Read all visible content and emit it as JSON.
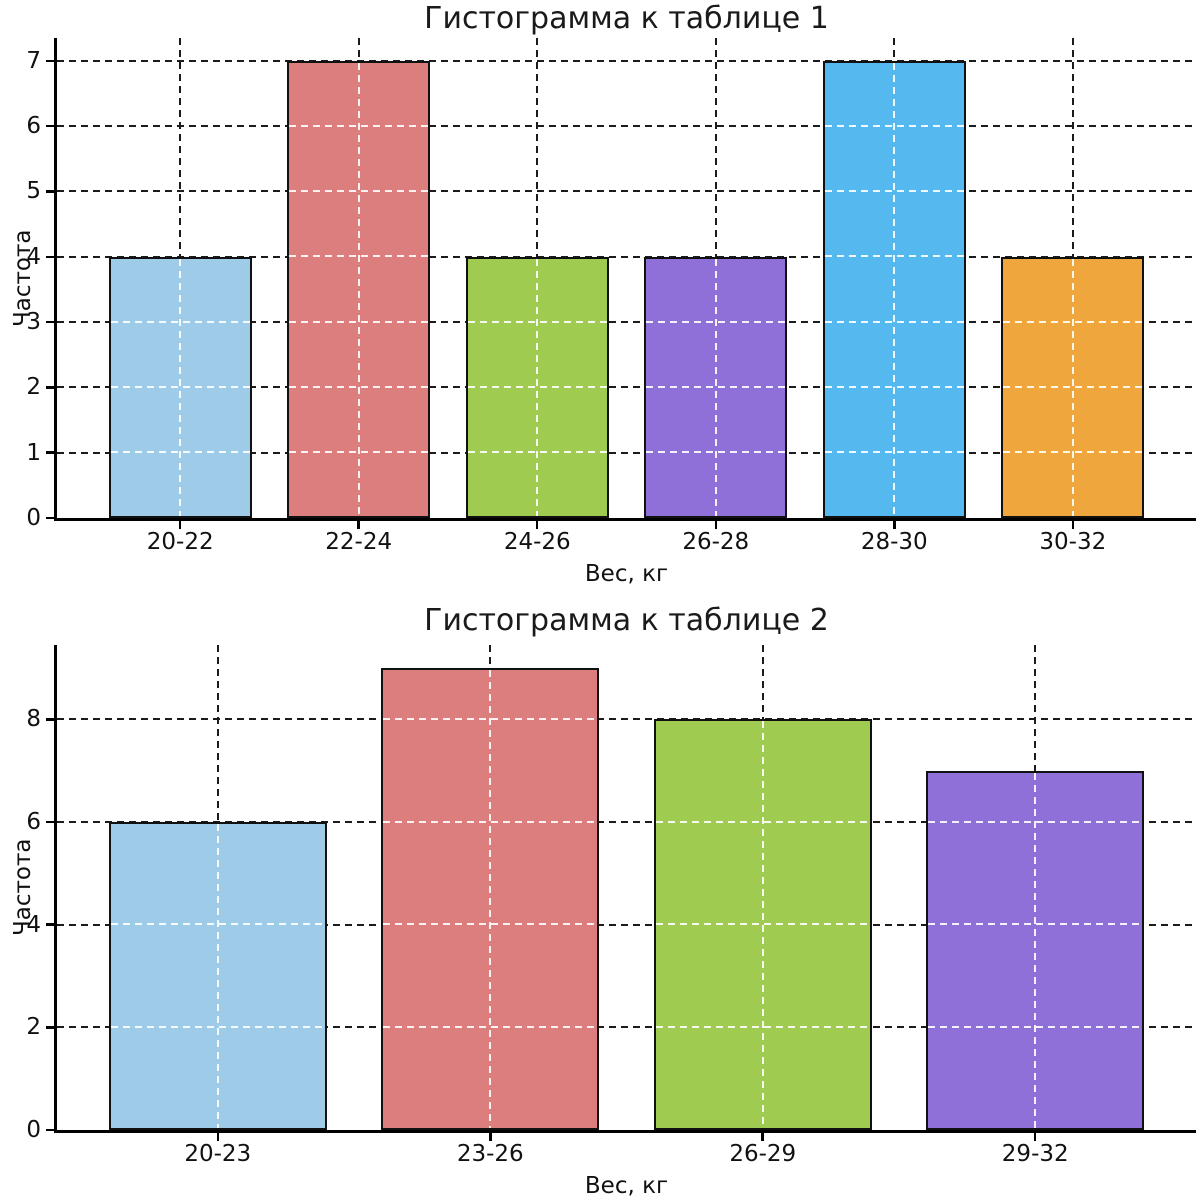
{
  "chart_data": [
    {
      "type": "bar",
      "title": "Гистограмма к таблице 1",
      "xlabel": "Вес, кг",
      "ylabel": "Частота",
      "categories": [
        "20-22",
        "22-24",
        "24-26",
        "26-28",
        "28-30",
        "30-32"
      ],
      "values": [
        4,
        7,
        4,
        4,
        7,
        4
      ],
      "bar_colors": [
        "#9DCBE8",
        "#DD7E7E",
        "#9FCB50",
        "#8F6FD8",
        "#55B9F0",
        "#EFA63C"
      ],
      "edge_color": "#111111",
      "yticks": [
        0,
        1,
        2,
        3,
        4,
        5,
        6,
        7
      ],
      "ylim": [
        0,
        7.35
      ],
      "grid": "dashed both, black below bars, white over bars",
      "legend": "none"
    },
    {
      "type": "bar",
      "title": "Гистограмма к таблице 2",
      "xlabel": "Вес, кг",
      "ylabel": "Частота",
      "categories": [
        "20-23",
        "23-26",
        "26-29",
        "29-32"
      ],
      "values": [
        6,
        9,
        8,
        7
      ],
      "bar_colors": [
        "#9DCBE8",
        "#DD7E7E",
        "#9FCB50",
        "#8F6FD8"
      ],
      "edge_color": "#111111",
      "yticks": [
        0,
        2,
        4,
        6,
        8
      ],
      "ylim": [
        0,
        9.45
      ],
      "grid": "dashed both, black below bars, white over bars",
      "legend": "none"
    }
  ]
}
